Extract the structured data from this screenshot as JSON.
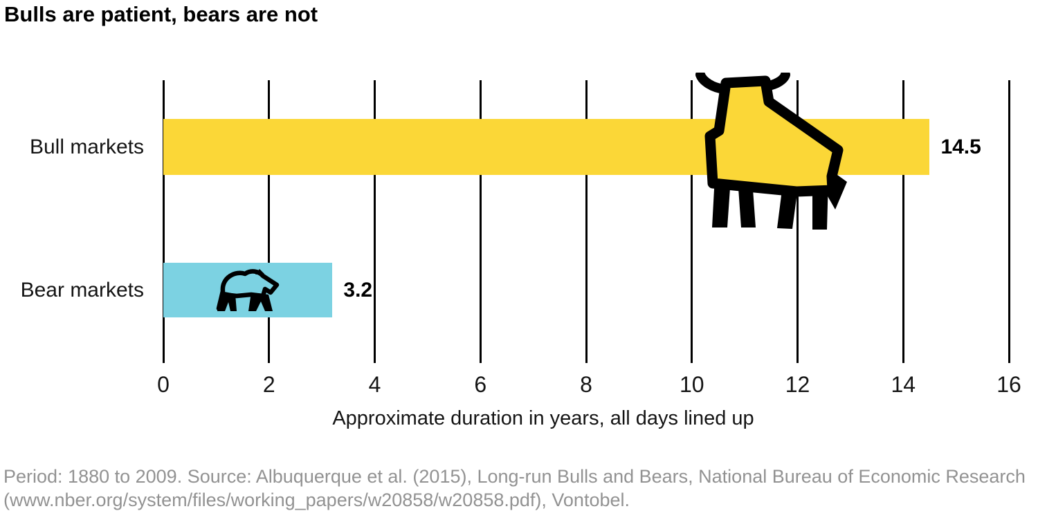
{
  "title": "Bulls are patient, bears are not",
  "chart_data": {
    "type": "bar",
    "orientation": "horizontal",
    "title": "Bulls are patient, bears are not",
    "categories": [
      "Bull markets",
      "Bear markets"
    ],
    "values": [
      14.5,
      3.2
    ],
    "value_labels": [
      "14.5",
      "3.2"
    ],
    "xlabel": "Approximate duration in years, all days lined up",
    "xlim": [
      0,
      16
    ],
    "xticks": [
      0,
      2,
      4,
      6,
      8,
      10,
      12,
      14,
      16
    ],
    "grid": "vertical-black-lines",
    "legend": "none",
    "bar_icons": [
      {
        "name": "bull-icon",
        "style": "black outline, yellow fill, overlaps bar"
      },
      {
        "name": "bear-icon",
        "style": "black outline pictogram on bar"
      }
    ]
  },
  "footer": {
    "line1": "Period: 1880 to 2009. Source: Albuquerque et al. (2015), Long-run Bulls and Bears, National Bureau of Economic Research",
    "line2": "(www.nber.org/system/files/working_papers/w20858/w20858.pdf), Vontobel."
  },
  "colors": {
    "bull_bar": "#FBD737",
    "bear_bar": "#7CD2E2",
    "gridline": "#000000",
    "text": "#141414",
    "value_text": "#000000",
    "footer_text": "#929292",
    "background": "#FFFFFF"
  }
}
